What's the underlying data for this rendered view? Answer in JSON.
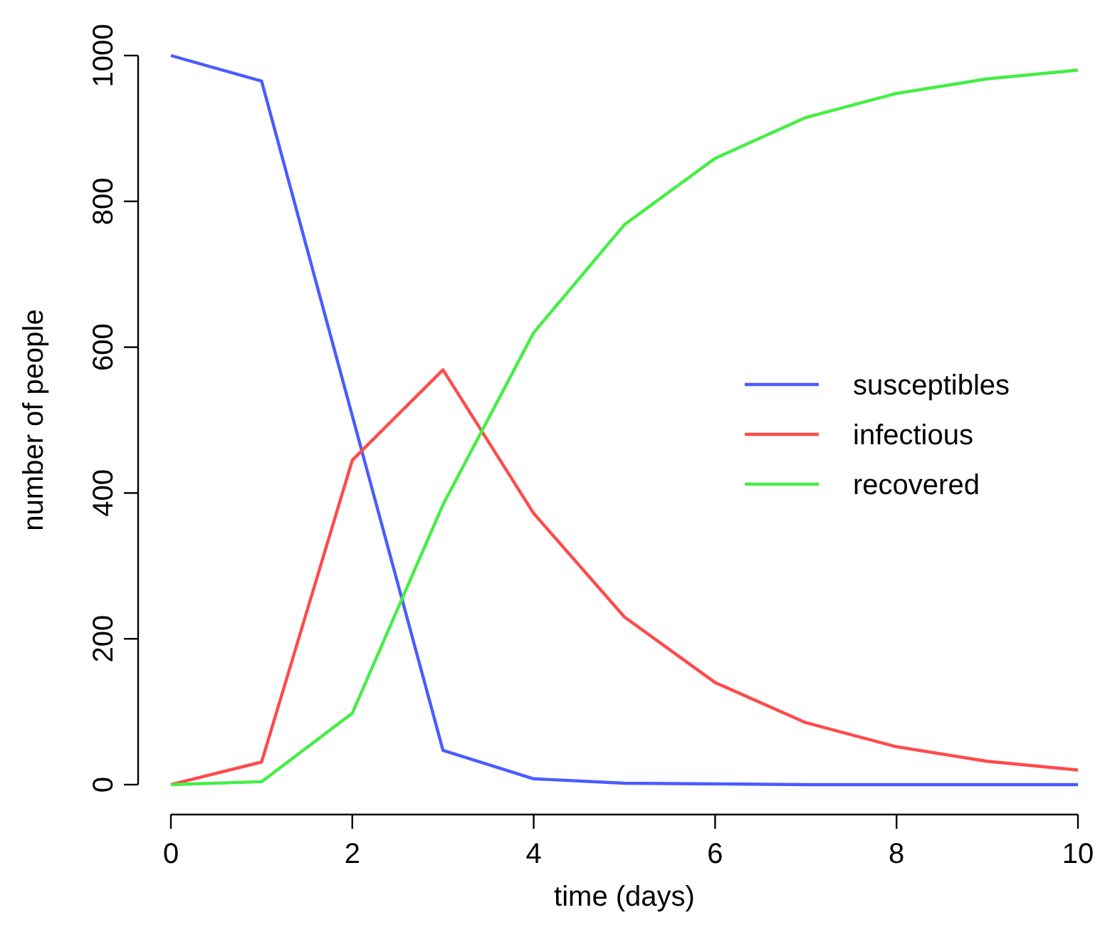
{
  "chart_data": {
    "type": "line",
    "xlabel": "time (days)",
    "ylabel": "number of people",
    "x": [
      0,
      1,
      2,
      3,
      4,
      5,
      6,
      7,
      8,
      9,
      10
    ],
    "series": [
      {
        "name": "susceptibles",
        "color": "#4a5cff",
        "values": [
          1000,
          965,
          506,
          47,
          8,
          2,
          1,
          0,
          0,
          0,
          0
        ]
      },
      {
        "name": "infectious",
        "color": "#ff4a4a",
        "values": [
          0,
          31,
          445,
          569,
          372,
          230,
          140,
          85,
          52,
          32,
          20
        ]
      },
      {
        "name": "recovered",
        "color": "#44ee44",
        "values": [
          0,
          4,
          98,
          384,
          620,
          768,
          859,
          915,
          948,
          968,
          980
        ]
      }
    ],
    "xlim": [
      0,
      10
    ],
    "xticks": [
      0,
      2,
      4,
      6,
      8,
      10
    ],
    "ylim": [
      0,
      1000
    ],
    "yticks": [
      0,
      200,
      400,
      600,
      800,
      1000
    ],
    "grid": false,
    "legend": "right",
    "marker": "none",
    "line_style": "solid"
  }
}
